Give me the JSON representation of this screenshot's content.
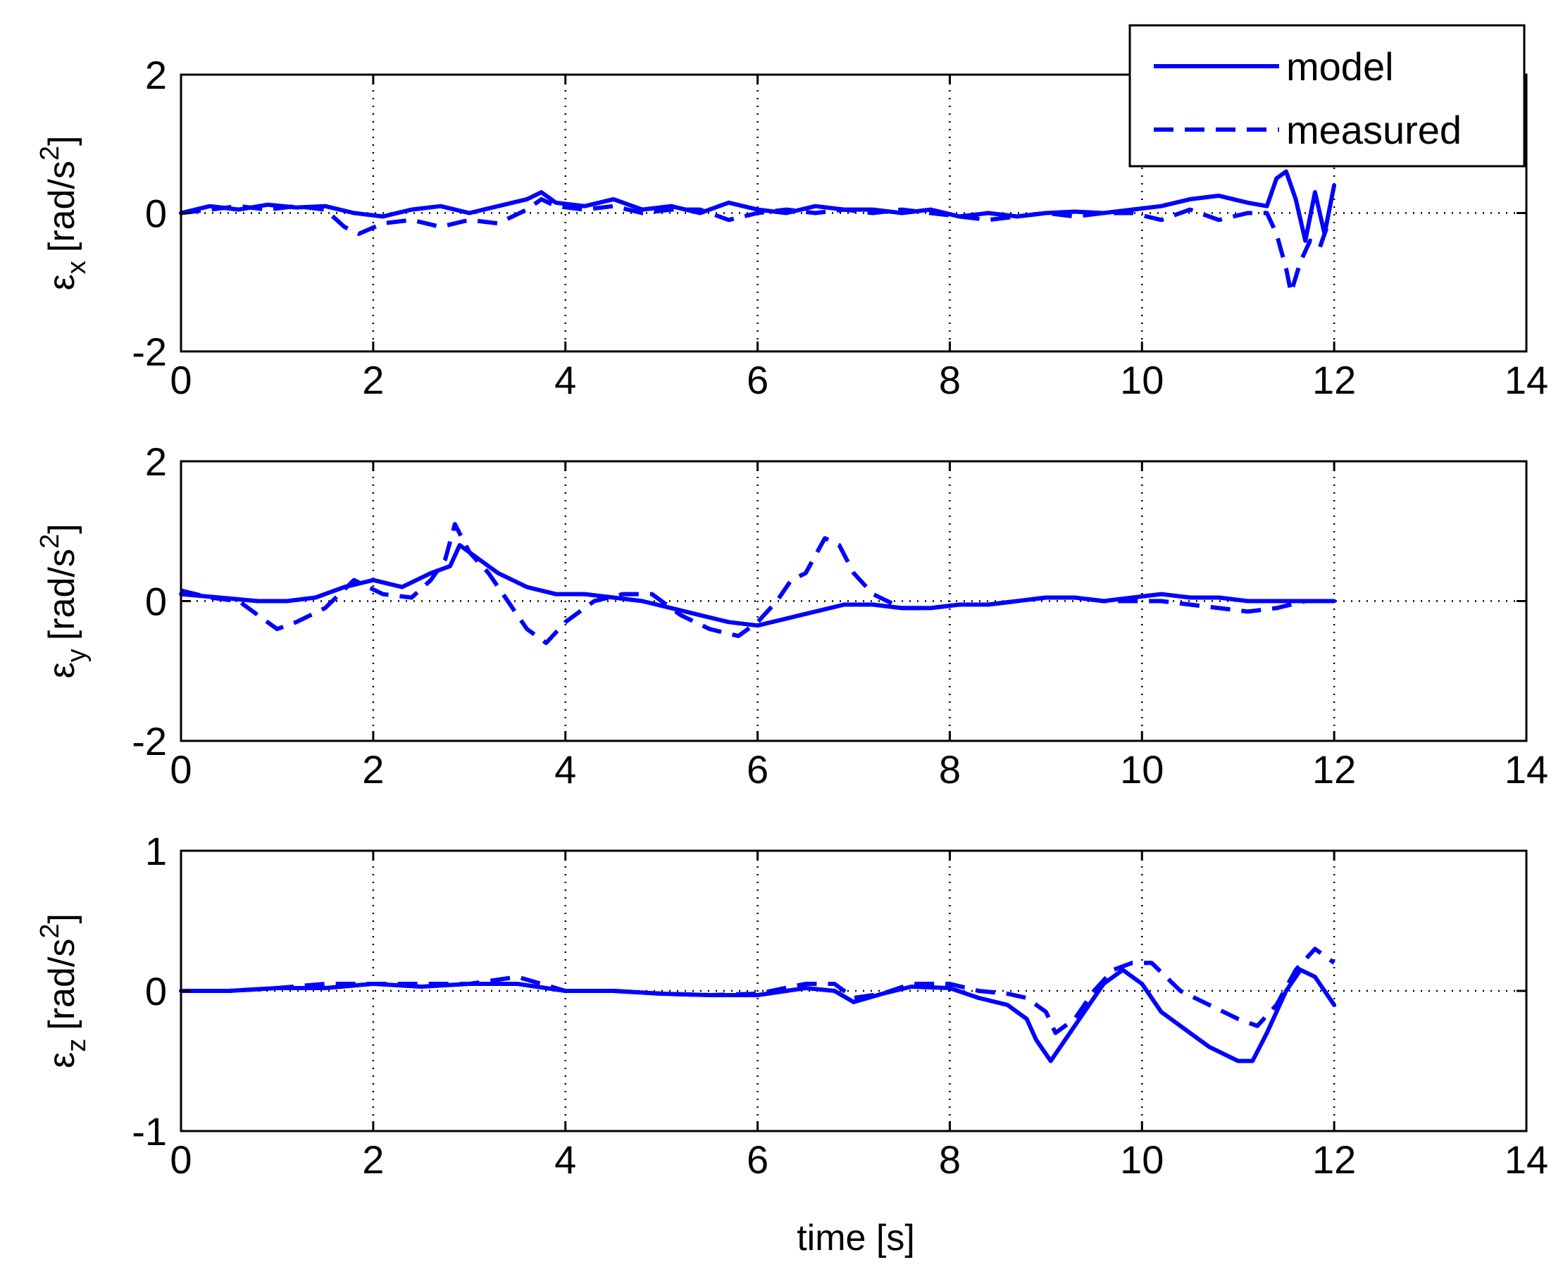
{
  "chart_data": {
    "type": "line",
    "shared_xlabel": "time [s]",
    "legend": {
      "placement": "top-right",
      "entries": [
        {
          "label": "model",
          "style": "solid"
        },
        {
          "label": "measured",
          "style": "dashed"
        }
      ]
    },
    "line_color": "#0000ff",
    "subplots": [
      {
        "id": "ex",
        "ylabel_main": "ε",
        "ylabel_sub": "x",
        "ylabel_unit": "[rad/s",
        "ylabel_pow": "2",
        "ylabel_close": "]",
        "xlim": [
          0,
          14
        ],
        "ylim": [
          -2,
          2
        ],
        "xticks": [
          0,
          2,
          4,
          6,
          8,
          10,
          12,
          14
        ],
        "yticks": [
          -2,
          0,
          2
        ],
        "series": [
          {
            "name": "model",
            "x": [
              0,
              0.3,
              0.6,
              0.9,
              1.2,
              1.5,
              1.8,
              2.1,
              2.4,
              2.7,
              3.0,
              3.3,
              3.6,
              3.75,
              3.9,
              4.2,
              4.5,
              4.8,
              5.1,
              5.4,
              5.7,
              6.0,
              6.3,
              6.6,
              6.9,
              7.2,
              7.5,
              7.8,
              8.1,
              8.4,
              8.7,
              9.0,
              9.3,
              9.6,
              9.9,
              10.2,
              10.5,
              10.8,
              11.1,
              11.3,
              11.4,
              11.5,
              11.6,
              11.7,
              11.8,
              11.9,
              12.0
            ],
            "y": [
              0,
              0.1,
              0.05,
              0.12,
              0.08,
              0.1,
              0.0,
              -0.05,
              0.05,
              0.1,
              0.0,
              0.1,
              0.2,
              0.3,
              0.15,
              0.1,
              0.2,
              0.05,
              0.1,
              0.0,
              0.15,
              0.05,
              0.0,
              0.1,
              0.05,
              0.05,
              0.0,
              0.05,
              -0.05,
              0.0,
              -0.05,
              0.0,
              0.02,
              0.0,
              0.05,
              0.1,
              0.2,
              0.25,
              0.15,
              0.1,
              0.5,
              0.6,
              0.2,
              -0.4,
              0.3,
              -0.3,
              0.4
            ]
          },
          {
            "name": "measured",
            "x": [
              0,
              0.3,
              0.6,
              0.9,
              1.2,
              1.5,
              1.7,
              1.85,
              2.1,
              2.4,
              2.7,
              3.0,
              3.3,
              3.6,
              3.75,
              3.9,
              4.2,
              4.5,
              4.8,
              5.1,
              5.4,
              5.7,
              6.0,
              6.3,
              6.6,
              6.9,
              7.2,
              7.5,
              7.8,
              8.1,
              8.4,
              8.7,
              9.0,
              9.3,
              9.6,
              9.9,
              10.2,
              10.5,
              10.8,
              11.1,
              11.3,
              11.4,
              11.5,
              11.55,
              11.65,
              11.75,
              11.85,
              11.95
            ],
            "y": [
              0,
              0.05,
              0.1,
              0.05,
              0.1,
              0.05,
              -0.2,
              -0.3,
              -0.15,
              -0.1,
              -0.2,
              -0.1,
              -0.15,
              0.05,
              0.2,
              0.1,
              0.05,
              0.1,
              0.0,
              0.05,
              0.05,
              -0.1,
              0.0,
              0.05,
              0.0,
              0.05,
              0.0,
              0.05,
              0.0,
              -0.05,
              -0.1,
              -0.05,
              0.0,
              -0.05,
              0.0,
              0.0,
              -0.1,
              0.05,
              -0.1,
              0.0,
              0.0,
              -0.3,
              -0.8,
              -1.15,
              -0.7,
              -0.4,
              -0.5,
              -0.1
            ]
          }
        ]
      },
      {
        "id": "ey",
        "ylabel_main": "ε",
        "ylabel_sub": "y",
        "ylabel_unit": "[rad/s",
        "ylabel_pow": "2",
        "ylabel_close": "]",
        "xlim": [
          0,
          14
        ],
        "ylim": [
          -2,
          2
        ],
        "xticks": [
          0,
          2,
          4,
          6,
          8,
          10,
          12,
          14
        ],
        "yticks": [
          -2,
          0,
          2
        ],
        "series": [
          {
            "name": "model",
            "x": [
              0,
              0.4,
              0.8,
              1.1,
              1.4,
              1.7,
              2.0,
              2.3,
              2.6,
              2.8,
              2.9,
              3.1,
              3.3,
              3.6,
              3.9,
              4.2,
              4.5,
              4.8,
              5.1,
              5.4,
              5.7,
              6.0,
              6.3,
              6.6,
              6.9,
              7.2,
              7.5,
              7.8,
              8.1,
              8.4,
              8.7,
              9.0,
              9.3,
              9.6,
              9.9,
              10.2,
              10.5,
              10.8,
              11.1,
              11.4,
              11.7,
              12.0
            ],
            "y": [
              0.1,
              0.05,
              0.0,
              0.0,
              0.05,
              0.2,
              0.3,
              0.2,
              0.4,
              0.5,
              0.8,
              0.6,
              0.4,
              0.2,
              0.1,
              0.1,
              0.05,
              0.0,
              -0.1,
              -0.2,
              -0.3,
              -0.35,
              -0.25,
              -0.15,
              -0.05,
              -0.05,
              -0.1,
              -0.1,
              -0.05,
              -0.05,
              0.0,
              0.05,
              0.05,
              0.0,
              0.05,
              0.1,
              0.05,
              0.05,
              0.0,
              0.0,
              0.0,
              0.0
            ]
          },
          {
            "name": "measured",
            "x": [
              0,
              0.3,
              0.6,
              0.8,
              1.0,
              1.2,
              1.5,
              1.8,
              2.1,
              2.4,
              2.6,
              2.75,
              2.85,
              3.0,
              3.2,
              3.4,
              3.6,
              3.8,
              4.0,
              4.3,
              4.6,
              4.9,
              5.2,
              5.5,
              5.8,
              6.0,
              6.2,
              6.35,
              6.5,
              6.7,
              6.85,
              7.0,
              7.2,
              7.5,
              7.8,
              8.1,
              8.4,
              8.7,
              9.0,
              9.3,
              9.6,
              9.9,
              10.2,
              10.5,
              10.8,
              11.1,
              11.4,
              11.7,
              12.0
            ],
            "y": [
              0.15,
              0.05,
              0.0,
              -0.2,
              -0.4,
              -0.3,
              -0.1,
              0.3,
              0.1,
              0.05,
              0.3,
              0.6,
              1.1,
              0.7,
              0.4,
              0.0,
              -0.4,
              -0.6,
              -0.3,
              0.0,
              0.1,
              0.1,
              -0.2,
              -0.4,
              -0.5,
              -0.3,
              0.0,
              0.3,
              0.4,
              0.9,
              0.8,
              0.4,
              0.1,
              -0.1,
              -0.1,
              -0.05,
              -0.05,
              0.0,
              0.05,
              0.05,
              0.0,
              0.0,
              0.0,
              -0.05,
              -0.1,
              -0.15,
              -0.1,
              0.0,
              0.0
            ]
          }
        ]
      },
      {
        "id": "ez",
        "ylabel_main": "ε",
        "ylabel_sub": "z",
        "ylabel_unit": "[rad/s",
        "ylabel_pow": "2",
        "ylabel_close": "]",
        "xlim": [
          0,
          14
        ],
        "ylim": [
          -1,
          1
        ],
        "xticks": [
          0,
          2,
          4,
          6,
          8,
          10,
          12,
          14
        ],
        "yticks": [
          -1,
          0,
          1
        ],
        "series": [
          {
            "name": "model",
            "x": [
              0,
              0.5,
              1.0,
              1.5,
              2.0,
              2.5,
              3.0,
              3.5,
              4.0,
              4.5,
              5.0,
              5.5,
              6.0,
              6.5,
              6.8,
              7.0,
              7.3,
              7.6,
              8.0,
              8.3,
              8.6,
              8.8,
              8.9,
              9.05,
              9.2,
              9.4,
              9.6,
              9.8,
              10.0,
              10.2,
              10.4,
              10.7,
              11.0,
              11.15,
              11.3,
              11.5,
              11.65,
              11.8,
              12.0
            ],
            "y": [
              0,
              0.0,
              0.02,
              0.02,
              0.05,
              0.03,
              0.05,
              0.05,
              0.0,
              0.0,
              -0.02,
              -0.03,
              -0.03,
              0.02,
              0.0,
              -0.08,
              -0.02,
              0.03,
              0.02,
              -0.05,
              -0.1,
              -0.2,
              -0.35,
              -0.5,
              -0.35,
              -0.15,
              0.05,
              0.15,
              0.05,
              -0.15,
              -0.25,
              -0.4,
              -0.5,
              -0.5,
              -0.3,
              0.0,
              0.15,
              0.1,
              -0.1
            ]
          },
          {
            "name": "measured",
            "x": [
              0,
              0.5,
              1.0,
              1.5,
              2.0,
              2.5,
              3.0,
              3.5,
              4.0,
              4.5,
              5.0,
              5.5,
              6.0,
              6.5,
              6.8,
              7.0,
              7.3,
              7.6,
              8.0,
              8.3,
              8.6,
              8.8,
              9.0,
              9.1,
              9.3,
              9.5,
              9.7,
              9.9,
              10.1,
              10.4,
              10.7,
              11.0,
              11.2,
              11.4,
              11.6,
              11.8,
              12.0
            ],
            "y": [
              0,
              0.0,
              0.02,
              0.05,
              0.05,
              0.05,
              0.05,
              0.1,
              0.0,
              0.0,
              -0.02,
              -0.03,
              -0.02,
              0.05,
              0.05,
              -0.05,
              -0.02,
              0.05,
              0.05,
              0.0,
              -0.02,
              -0.05,
              -0.15,
              -0.3,
              -0.2,
              0.0,
              0.15,
              0.2,
              0.2,
              0.0,
              -0.1,
              -0.2,
              -0.25,
              -0.1,
              0.15,
              0.3,
              0.2
            ]
          }
        ]
      }
    ]
  }
}
